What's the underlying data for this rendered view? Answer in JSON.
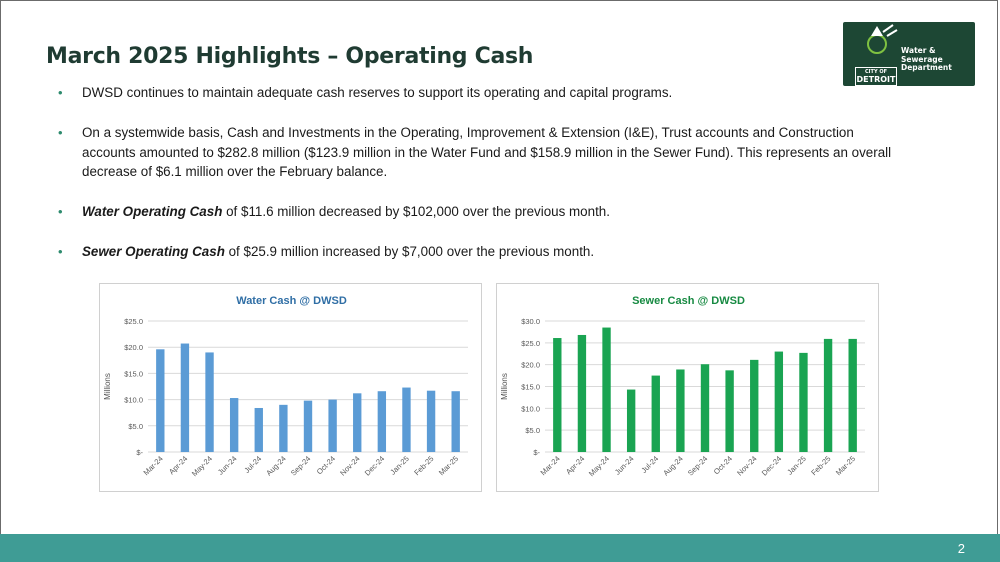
{
  "slide": {
    "title": "March 2025 Highlights – Operating Cash",
    "page_number": "2"
  },
  "logo": {
    "org_line1": "Water & Sewerage",
    "org_line2": "Department",
    "city_small": "CITY OF",
    "city_name": "DETROIT",
    "colors": {
      "background": "#1d4734",
      "accent": "#7fc241"
    }
  },
  "bullets": [
    {
      "lead": "",
      "text": "DWSD continues to maintain adequate cash reserves to support its operating and capital programs."
    },
    {
      "lead": "",
      "text": "On a systemwide basis, Cash and Investments in the Operating, Improvement & Extension (I&E), Trust accounts and Construction accounts amounted to $282.8 million ($123.9 million in the Water Fund and $158.9 million in the Sewer Fund). This represents an overall  decrease of $6.1 million over the February balance."
    },
    {
      "lead": "Water Operating Cash",
      "text": " of $11.6 million decreased by $102,000 over the previous month."
    },
    {
      "lead": "Sewer Operating Cash",
      "text": " of $25.9 million increased by $7,000 over the previous month."
    }
  ],
  "chart_data": [
    {
      "type": "bar",
      "title": "Water Cash @ DWSD",
      "ylabel": "Millions",
      "categories": [
        "Mar-24",
        "Apr-24",
        "May-24",
        "Jun-24",
        "Jul-24",
        "Aug-24",
        "Sep-24",
        "Oct-24",
        "Nov-24",
        "Dec-24",
        "Jan-25",
        "Feb-25",
        "Mar-25"
      ],
      "values": [
        19.6,
        20.7,
        19.0,
        10.3,
        8.4,
        9.0,
        9.8,
        10.0,
        11.2,
        11.6,
        12.3,
        11.7,
        11.6
      ],
      "ylim": [
        0,
        25
      ],
      "yticks": [
        0,
        5,
        10,
        15,
        20,
        25
      ],
      "ytick_labels": [
        "$-",
        "$5.0",
        "$10.0",
        "$15.0",
        "$20.0",
        "$25.0"
      ],
      "grid": true,
      "color": "#5b9bd5",
      "title_color": "#2f6ea5"
    },
    {
      "type": "bar",
      "title": "Sewer Cash @ DWSD",
      "ylabel": "Millions",
      "categories": [
        "Mar-24",
        "Apr-24",
        "May-24",
        "Jun-24",
        "Jul-24",
        "Aug-24",
        "Sep-24",
        "Oct-24",
        "Nov-24",
        "Dec-24",
        "Jan-25",
        "Feb-25",
        "Mar-25"
      ],
      "values": [
        26.1,
        26.8,
        28.5,
        14.3,
        17.5,
        18.9,
        20.1,
        18.7,
        21.1,
        23.0,
        22.7,
        25.9,
        25.9
      ],
      "ylim": [
        0,
        30
      ],
      "yticks": [
        0,
        5,
        10,
        15,
        20,
        25,
        30
      ],
      "ytick_labels": [
        "$-",
        "$5.0",
        "$10.0",
        "$15.0",
        "$20.0",
        "$25.0",
        "$30.0"
      ],
      "grid": true,
      "color": "#1aa452",
      "title_color": "#178a42"
    }
  ]
}
